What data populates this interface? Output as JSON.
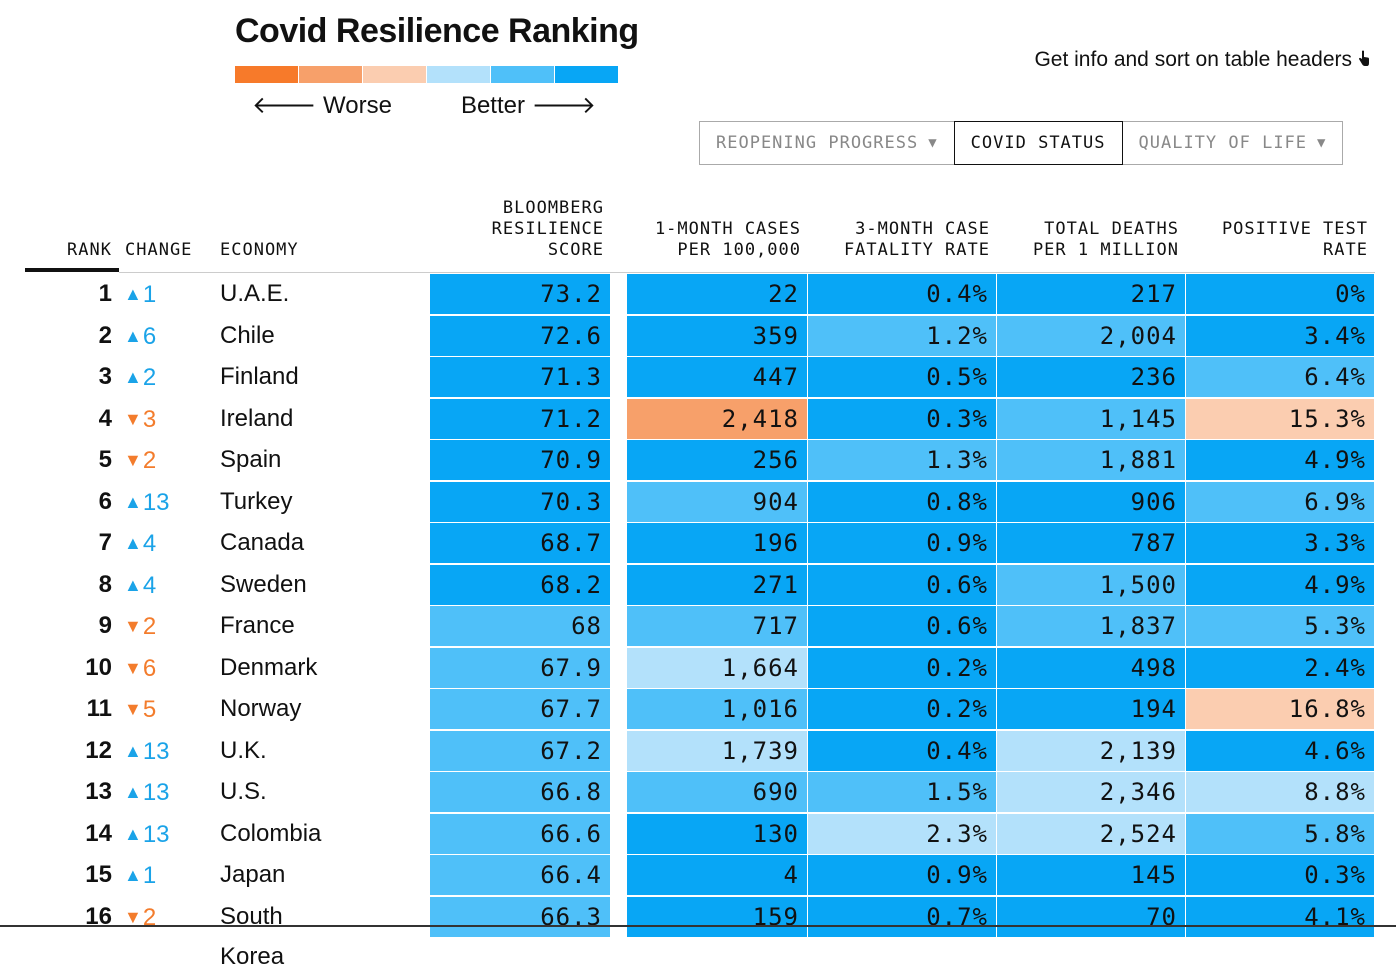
{
  "title": "Covid Resilience Ranking",
  "legend": {
    "colors": [
      "#f77a2a",
      "#f7a06a",
      "#fbcdb0",
      "#b3e1fb",
      "#4fc0f9",
      "#08a6f5"
    ],
    "worse_label": "🡐 Worse",
    "better_label": "Better 🡒"
  },
  "hint": "Get info and sort on table headers",
  "tabs": [
    {
      "label": "REOPENING PROGRESS",
      "active": false
    },
    {
      "label": "COVID STATUS",
      "active": true
    },
    {
      "label": "QUALITY OF LIFE",
      "active": false
    }
  ],
  "headers": {
    "rank": "RANK",
    "change": "CHANGE",
    "economy": "ECONOMY",
    "score": [
      "BLOOMBERG",
      "RESILIENCE",
      "SCORE"
    ],
    "cases": [
      "1-MONTH CASES",
      "PER 100,000"
    ],
    "fatality": [
      "3-MONTH CASE",
      "FATALITY RATE"
    ],
    "deaths": [
      "TOTAL DEATHS",
      "PER 1 MILLION"
    ],
    "positive": [
      "POSITIVE TEST",
      "RATE"
    ]
  },
  "colors": {
    "dark": "#08a6f5",
    "mid": "#4fc0f9",
    "light": "#b3e1fb",
    "peach": "#fbcdb0",
    "orange": "#f7a06a"
  },
  "rows": [
    {
      "rank": "1",
      "dir": "up",
      "change": "1",
      "economy": "U.A.E.",
      "score": "73.2",
      "score_c": "dark",
      "cases": "22",
      "cases_c": "dark",
      "fatality": "0.4%",
      "fatality_c": "dark",
      "deaths": "217",
      "deaths_c": "dark",
      "positive": "0%",
      "positive_c": "dark"
    },
    {
      "rank": "2",
      "dir": "up",
      "change": "6",
      "economy": "Chile",
      "score": "72.6",
      "score_c": "dark",
      "cases": "359",
      "cases_c": "dark",
      "fatality": "1.2%",
      "fatality_c": "mid",
      "deaths": "2,004",
      "deaths_c": "mid",
      "positive": "3.4%",
      "positive_c": "dark"
    },
    {
      "rank": "3",
      "dir": "up",
      "change": "2",
      "economy": "Finland",
      "score": "71.3",
      "score_c": "dark",
      "cases": "447",
      "cases_c": "dark",
      "fatality": "0.5%",
      "fatality_c": "dark",
      "deaths": "236",
      "deaths_c": "dark",
      "positive": "6.4%",
      "positive_c": "mid"
    },
    {
      "rank": "4",
      "dir": "down",
      "change": "3",
      "economy": "Ireland",
      "score": "71.2",
      "score_c": "dark",
      "cases": "2,418",
      "cases_c": "orange",
      "fatality": "0.3%",
      "fatality_c": "dark",
      "deaths": "1,145",
      "deaths_c": "mid",
      "positive": "15.3%",
      "positive_c": "peach"
    },
    {
      "rank": "5",
      "dir": "down",
      "change": "2",
      "economy": "Spain",
      "score": "70.9",
      "score_c": "dark",
      "cases": "256",
      "cases_c": "dark",
      "fatality": "1.3%",
      "fatality_c": "mid",
      "deaths": "1,881",
      "deaths_c": "mid",
      "positive": "4.9%",
      "positive_c": "dark"
    },
    {
      "rank": "6",
      "dir": "up",
      "change": "13",
      "economy": "Turkey",
      "score": "70.3",
      "score_c": "dark",
      "cases": "904",
      "cases_c": "mid",
      "fatality": "0.8%",
      "fatality_c": "dark",
      "deaths": "906",
      "deaths_c": "dark",
      "positive": "6.9%",
      "positive_c": "mid"
    },
    {
      "rank": "7",
      "dir": "up",
      "change": "4",
      "economy": "Canada",
      "score": "68.7",
      "score_c": "dark",
      "cases": "196",
      "cases_c": "dark",
      "fatality": "0.9%",
      "fatality_c": "dark",
      "deaths": "787",
      "deaths_c": "dark",
      "positive": "3.3%",
      "positive_c": "dark"
    },
    {
      "rank": "8",
      "dir": "up",
      "change": "4",
      "economy": "Sweden",
      "score": "68.2",
      "score_c": "dark",
      "cases": "271",
      "cases_c": "dark",
      "fatality": "0.6%",
      "fatality_c": "dark",
      "deaths": "1,500",
      "deaths_c": "mid",
      "positive": "4.9%",
      "positive_c": "dark"
    },
    {
      "rank": "9",
      "dir": "down",
      "change": "2",
      "economy": "France",
      "score": "68",
      "score_c": "mid",
      "cases": "717",
      "cases_c": "mid",
      "fatality": "0.6%",
      "fatality_c": "dark",
      "deaths": "1,837",
      "deaths_c": "mid",
      "positive": "5.3%",
      "positive_c": "mid"
    },
    {
      "rank": "10",
      "dir": "down",
      "change": "6",
      "economy": "Denmark",
      "score": "67.9",
      "score_c": "mid",
      "cases": "1,664",
      "cases_c": "light",
      "fatality": "0.2%",
      "fatality_c": "dark",
      "deaths": "498",
      "deaths_c": "dark",
      "positive": "2.4%",
      "positive_c": "dark"
    },
    {
      "rank": "11",
      "dir": "down",
      "change": "5",
      "economy": "Norway",
      "score": "67.7",
      "score_c": "mid",
      "cases": "1,016",
      "cases_c": "mid",
      "fatality": "0.2%",
      "fatality_c": "dark",
      "deaths": "194",
      "deaths_c": "dark",
      "positive": "16.8%",
      "positive_c": "peach"
    },
    {
      "rank": "12",
      "dir": "up",
      "change": "13",
      "economy": "U.K.",
      "score": "67.2",
      "score_c": "mid",
      "cases": "1,739",
      "cases_c": "light",
      "fatality": "0.4%",
      "fatality_c": "dark",
      "deaths": "2,139",
      "deaths_c": "light",
      "positive": "4.6%",
      "positive_c": "dark"
    },
    {
      "rank": "13",
      "dir": "up",
      "change": "13",
      "economy": "U.S.",
      "score": "66.8",
      "score_c": "mid",
      "cases": "690",
      "cases_c": "mid",
      "fatality": "1.5%",
      "fatality_c": "mid",
      "deaths": "2,346",
      "deaths_c": "light",
      "positive": "8.8%",
      "positive_c": "light"
    },
    {
      "rank": "14",
      "dir": "up",
      "change": "13",
      "economy": "Colombia",
      "score": "66.6",
      "score_c": "mid",
      "cases": "130",
      "cases_c": "dark",
      "fatality": "2.3%",
      "fatality_c": "light",
      "deaths": "2,524",
      "deaths_c": "light",
      "positive": "5.8%",
      "positive_c": "mid"
    },
    {
      "rank": "15",
      "dir": "up",
      "change": "1",
      "economy": "Japan",
      "score": "66.4",
      "score_c": "mid",
      "cases": "4",
      "cases_c": "dark",
      "fatality": "0.9%",
      "fatality_c": "dark",
      "deaths": "145",
      "deaths_c": "dark",
      "positive": "0.3%",
      "positive_c": "dark"
    },
    {
      "rank": "16",
      "dir": "down",
      "change": "2",
      "economy": "South Korea",
      "score": "66.3",
      "score_c": "mid",
      "cases": "159",
      "cases_c": "dark",
      "fatality": "0.7%",
      "fatality_c": "dark",
      "deaths": "70",
      "deaths_c": "dark",
      "positive": "4.1%",
      "positive_c": "dark"
    }
  ]
}
